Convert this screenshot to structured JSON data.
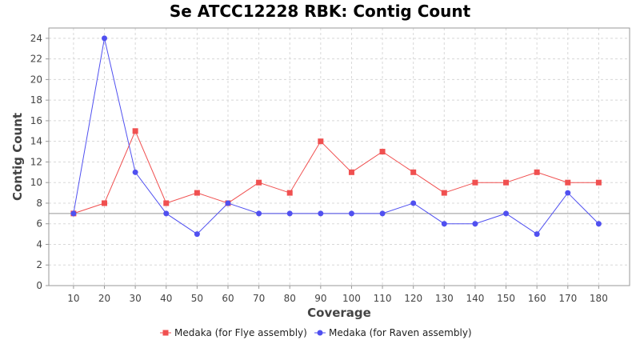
{
  "chart_data": {
    "type": "line",
    "title": "Se ATCC12228 RBK: Contig Count",
    "xlabel": "Coverage",
    "ylabel": "Contig Count",
    "categories": [
      "10",
      "20",
      "30",
      "40",
      "50",
      "60",
      "70",
      "80",
      "90",
      "100",
      "110",
      "120",
      "130",
      "140",
      "150",
      "160",
      "170",
      "180"
    ],
    "ylim": [
      0,
      25
    ],
    "yticks": [
      0,
      2,
      4,
      6,
      8,
      10,
      12,
      14,
      16,
      18,
      20,
      22,
      24
    ],
    "reference_line": 7,
    "grid": true,
    "legend_position": "bottom",
    "series": [
      {
        "name": "Medaka (for Flye assembly)",
        "color": "#f05050",
        "marker": "square",
        "values": [
          7,
          8,
          15,
          8,
          9,
          8,
          10,
          9,
          14,
          11,
          13,
          11,
          9,
          10,
          10,
          11,
          10,
          10
        ]
      },
      {
        "name": "Medaka (for Raven assembly)",
        "color": "#5050f0",
        "marker": "circle",
        "values": [
          7,
          24,
          11,
          7,
          5,
          8,
          7,
          7,
          7,
          7,
          7,
          8,
          6,
          6,
          7,
          5,
          9,
          6
        ]
      }
    ]
  }
}
